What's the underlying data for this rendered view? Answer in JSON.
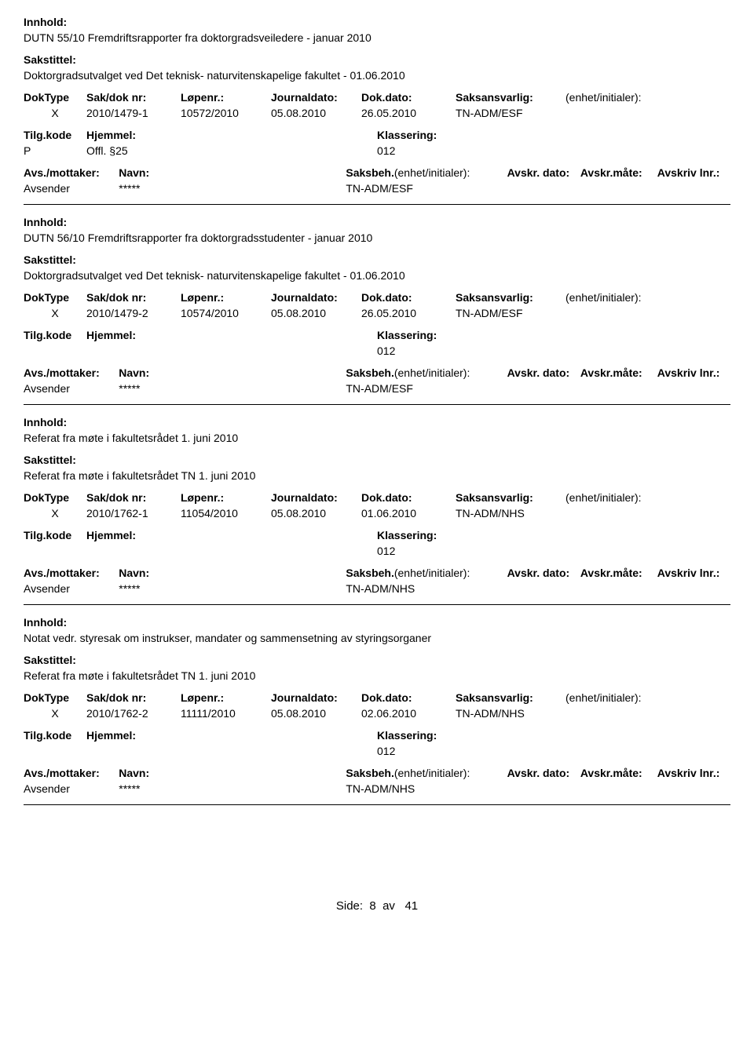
{
  "labels": {
    "innhold": "Innhold:",
    "sakstittel": "Sakstittel:",
    "doktype": "DokType",
    "sakdoknr": "Sak/dok nr:",
    "lopenr": "Løpenr.:",
    "journaldato": "Journaldato:",
    "dokdato": "Dok.dato:",
    "saksansvarlig": "Saksansvarlig:",
    "enhet": "(enhet/initialer):",
    "tilgkode": "Tilg.kode",
    "hjemmel": "Hjemmel:",
    "klassering": "Klassering:",
    "avsmottaker": "Avs./mottaker:",
    "navn": "Navn:",
    "saksbeh": "Saksbeh.",
    "saksbeh_suffix": "(enhet/initialer):",
    "avskrdato": "Avskr. dato:",
    "avskrmate": "Avskr.måte:",
    "avskrivlnr": "Avskriv lnr.:"
  },
  "records": [
    {
      "innhold": "DUTN 55/10 Fremdriftsrapporter fra doktorgradsveiledere - januar 2010",
      "sakstittel": "Doktorgradsutvalget ved Det teknisk- naturvitenskapelige fakultet - 01.06.2010",
      "doktype": "X",
      "sakdoknr": "2010/1479-1",
      "lopenr": "10572/2010",
      "journaldato": "05.08.2010",
      "dokdato": "26.05.2010",
      "saksansvarlig": "TN-ADM/ESF",
      "tilgkode": "P",
      "hjemmel": "Offl. §25",
      "klassering": "012",
      "avsmottaker": "Avsender",
      "navn": "*****",
      "saksbeh": "TN-ADM/ESF"
    },
    {
      "innhold": "DUTN 56/10 Fremdriftsrapporter fra doktorgradsstudenter - januar 2010",
      "sakstittel": "Doktorgradsutvalget ved Det teknisk- naturvitenskapelige fakultet - 01.06.2010",
      "doktype": "X",
      "sakdoknr": "2010/1479-2",
      "lopenr": "10574/2010",
      "journaldato": "05.08.2010",
      "dokdato": "26.05.2010",
      "saksansvarlig": "TN-ADM/ESF",
      "tilgkode": "",
      "hjemmel": "",
      "klassering": "012",
      "avsmottaker": "Avsender",
      "navn": "*****",
      "saksbeh": "TN-ADM/ESF"
    },
    {
      "innhold": "Referat fra møte i fakultetsrådet 1. juni 2010",
      "sakstittel": "Referat fra møte i fakultetsrådet TN 1. juni 2010",
      "doktype": "X",
      "sakdoknr": "2010/1762-1",
      "lopenr": "11054/2010",
      "journaldato": "05.08.2010",
      "dokdato": "01.06.2010",
      "saksansvarlig": "TN-ADM/NHS",
      "tilgkode": "",
      "hjemmel": "",
      "klassering": "012",
      "avsmottaker": "Avsender",
      "navn": "*****",
      "saksbeh": "TN-ADM/NHS"
    },
    {
      "innhold": "Notat vedr. styresak om instrukser, mandater og sammensetning av styringsorganer",
      "sakstittel": "Referat fra møte i fakultetsrådet TN 1. juni 2010",
      "doktype": "X",
      "sakdoknr": "2010/1762-2",
      "lopenr": "11111/2010",
      "journaldato": "05.08.2010",
      "dokdato": "02.06.2010",
      "saksansvarlig": "TN-ADM/NHS",
      "tilgkode": "",
      "hjemmel": "",
      "klassering": "012",
      "avsmottaker": "Avsender",
      "navn": "*****",
      "saksbeh": "TN-ADM/NHS"
    }
  ],
  "footer": {
    "prefix": "Side:",
    "page": "8",
    "mid": "av",
    "total": "41"
  }
}
